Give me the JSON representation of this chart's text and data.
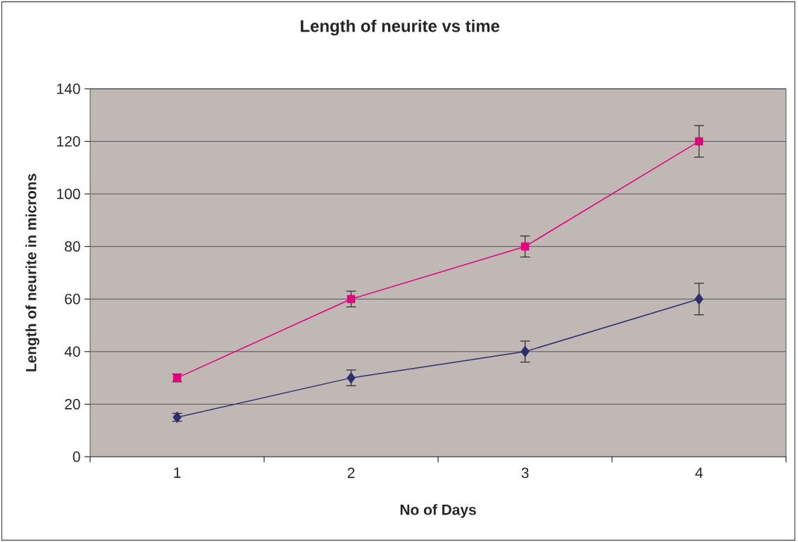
{
  "chart_data": {
    "type": "line",
    "title": "Length of neurite vs time",
    "xlabel": "No of Days",
    "ylabel": "Length of neurite in microns",
    "categories": [
      "1",
      "2",
      "3",
      "4"
    ],
    "series": [
      {
        "color": "#2e2e6e",
        "marker": "diamond",
        "values": [
          15,
          30,
          40,
          60
        ],
        "errors": [
          1.5,
          3,
          4,
          6
        ]
      },
      {
        "color": "#e6007e",
        "marker": "square",
        "values": [
          30,
          60,
          80,
          120
        ],
        "errors": [
          1.5,
          3,
          4,
          6
        ]
      }
    ],
    "ylim": [
      0,
      140
    ],
    "yticks": [
      0,
      20,
      40,
      60,
      80,
      100,
      120,
      140
    ],
    "grid": "y",
    "line_style": "solid"
  }
}
